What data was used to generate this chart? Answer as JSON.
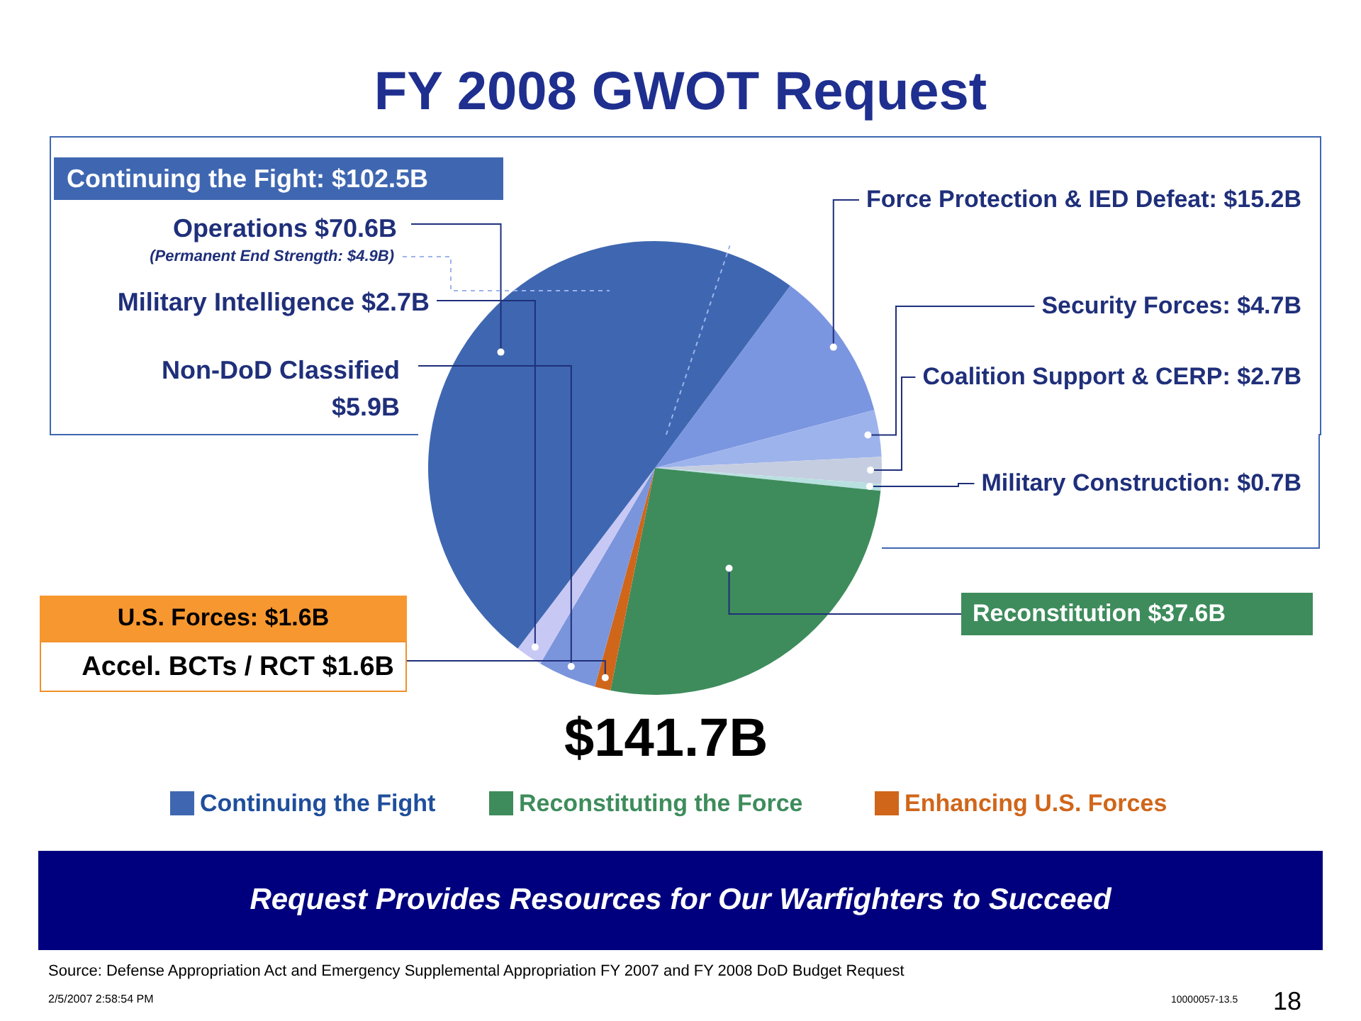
{
  "chart_data": {
    "type": "pie",
    "title": "FY 2008 GWOT Request",
    "categories": [
      "Force Protection & IED Defeat",
      "Security Forces",
      "Coalition Support & CERP",
      "Military Construction",
      "Reconstitution",
      "Accel. BCTs / RCT",
      "Non-DoD Classified",
      "Military Intelligence",
      "Operations"
    ],
    "values": [
      15.2,
      4.7,
      2.7,
      0.7,
      37.6,
      1.6,
      5.9,
      2.7,
      70.6
    ],
    "value_labels": [
      "$15.2B",
      "$4.7B",
      "$2.7B",
      "$0.7B",
      "$37.6B",
      "$1.6B",
      "$5.9B",
      "$2.7B",
      "$70.6B"
    ],
    "colors": [
      "#7b96e0",
      "#9db3ec",
      "#c5cde0",
      "#b8e0e0",
      "#3e8c5c",
      "#d0661a",
      "#7a95db",
      "#c8c8f5",
      "#3f67b1"
    ],
    "legend": false,
    "annotations": [
      "Continuing the Fight: $102.5B",
      "(Permanent End Strength: $4.9B)",
      "U.S. Forces: $1.6B",
      "$141.7B",
      "Continuing the Fight",
      "Reconstituting the Force",
      "Enhancing U.S. Forces",
      "Request Provides Resources for Our Warfighters to Succeed",
      "Source:  Defense Appropriation Act and Emergency Supplemental Appropriation FY 2007 and FY 2008 DoD Budget Request",
      "2/5/2007 2:58:54 PM",
      "10000057-13.5",
      "18"
    ]
  }
}
